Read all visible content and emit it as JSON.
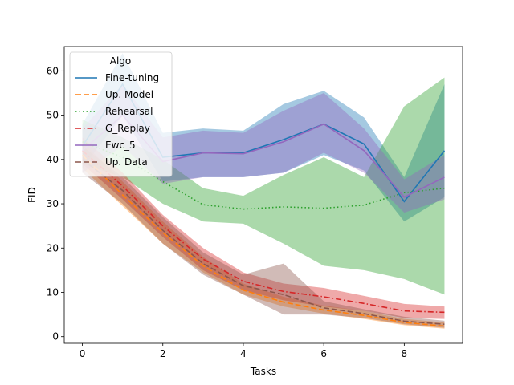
{
  "chart_data": {
    "type": "line",
    "title": "",
    "xlabel": "Tasks",
    "ylabel": "FID",
    "xlim": [
      -0.45,
      9.45
    ],
    "ylim": [
      -1.5,
      65.5
    ],
    "xticks": [
      0,
      2,
      4,
      6,
      8
    ],
    "yticks": [
      0,
      10,
      20,
      30,
      40,
      50,
      60
    ],
    "grid": false,
    "legend": {
      "title": "Algo",
      "position": "top-left"
    },
    "x": [
      0,
      1,
      2,
      3,
      4,
      5,
      6,
      7,
      8,
      9
    ],
    "series": [
      {
        "name": "Fine-tuning",
        "color": "#1f77b4",
        "style": "solid",
        "values": [
          43,
          57,
          40.5,
          41.5,
          41.5,
          44.5,
          48,
          43.5,
          30.5,
          42
        ],
        "band_upper": [
          48,
          64,
          46,
          47,
          46.5,
          52.5,
          55.5,
          49.5,
          36,
          57
        ],
        "band_lower": [
          38,
          50,
          35,
          36,
          36,
          37,
          41,
          37.5,
          26,
          31.5
        ]
      },
      {
        "name": "Up. Model",
        "color": "#ff7f0e",
        "style": "dashed",
        "values": [
          41,
          32,
          23.5,
          16,
          10.5,
          7.8,
          6,
          4.8,
          3.2,
          2.4
        ],
        "band_upper": [
          44,
          35,
          26,
          18,
          12,
          9,
          7,
          5.8,
          4,
          3.2
        ],
        "band_lower": [
          38,
          29.5,
          21,
          14.5,
          9.5,
          6.8,
          5.2,
          4,
          2.6,
          1.8
        ]
      },
      {
        "name": "Rehearsal",
        "color": "#2ca02c",
        "style": "dotted",
        "values": [
          44,
          40.5,
          35,
          29.8,
          28.8,
          29.3,
          29,
          29.7,
          32.5,
          33.5
        ],
        "band_upper": [
          49,
          45,
          40,
          33.5,
          31.8,
          36.5,
          40.5,
          36,
          52,
          58.5
        ],
        "band_lower": [
          39,
          36,
          30,
          26,
          25.5,
          21,
          16,
          15,
          13,
          9.5
        ]
      },
      {
        "name": "G_Replay",
        "color": "#d62728",
        "style": "dashdot",
        "values": [
          42,
          34,
          25,
          17.5,
          12.5,
          10.2,
          9,
          7.5,
          5.8,
          5.5
        ],
        "band_upper": [
          45,
          37,
          27.5,
          20,
          14.5,
          12,
          11,
          9.2,
          7.4,
          6.8
        ],
        "band_lower": [
          39,
          31,
          22.5,
          15,
          10.5,
          8.2,
          6.8,
          5.8,
          4.2,
          4
        ]
      },
      {
        "name": "Ewc_5",
        "color": "#9467bd",
        "style": "solid",
        "values": [
          42,
          50,
          39.5,
          41.5,
          41.3,
          44,
          48,
          42,
          31.5,
          36
        ],
        "band_upper": [
          47,
          57,
          45,
          46.5,
          46,
          51,
          55,
          47,
          35.5,
          41
        ],
        "band_lower": [
          37,
          43,
          34.5,
          36,
          36,
          37,
          41.5,
          37,
          28,
          31
        ]
      },
      {
        "name": "Up. Data",
        "color": "#8c564b",
        "style": "dashed",
        "values": [
          40,
          33,
          24,
          16.5,
          11.5,
          9.5,
          6.5,
          5.2,
          3.5,
          2.8
        ],
        "band_upper": [
          43,
          36,
          27,
          19,
          14,
          16.5,
          8,
          6.2,
          4.5,
          3.6
        ],
        "band_lower": [
          37,
          30,
          21,
          14,
          9.5,
          5,
          5,
          4.2,
          2.8,
          2
        ]
      }
    ]
  }
}
